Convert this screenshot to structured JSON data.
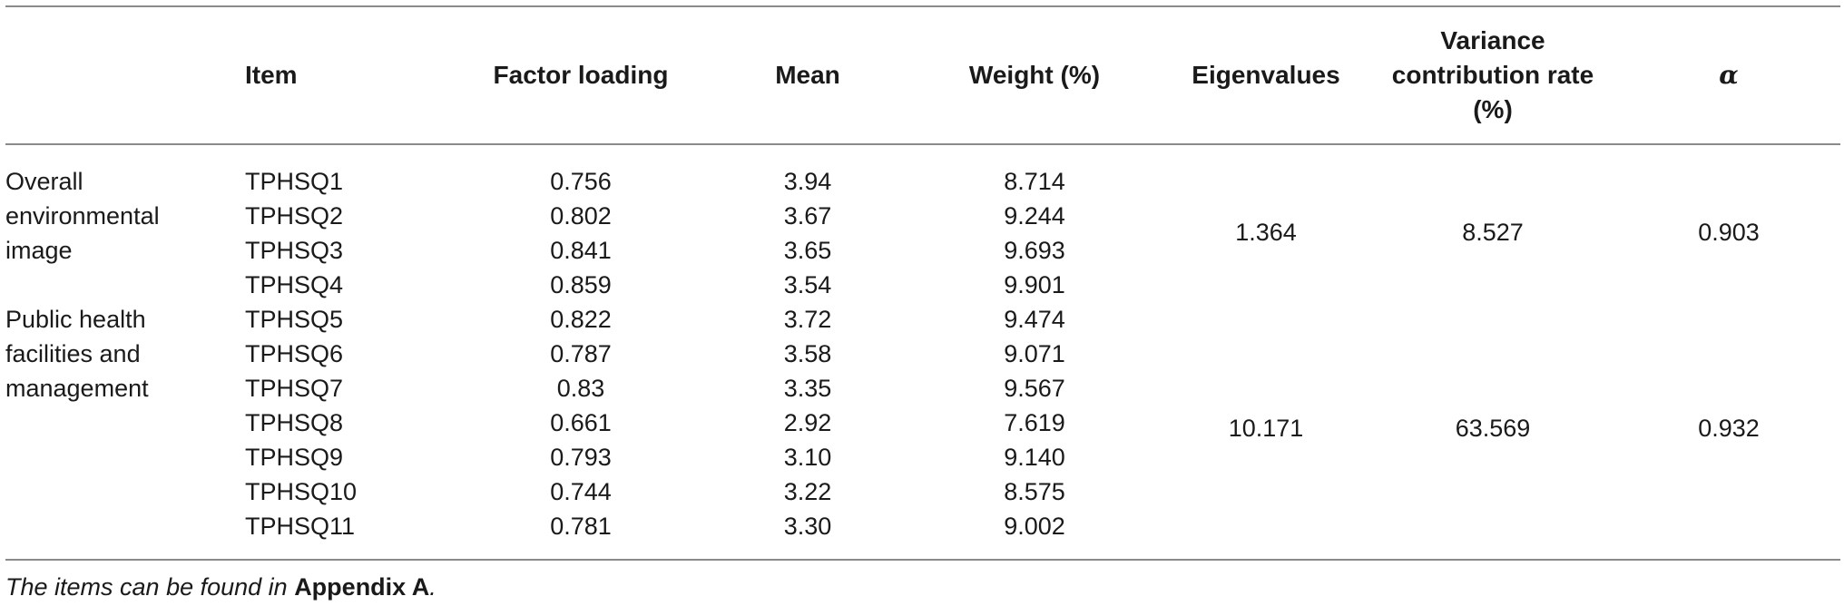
{
  "table": {
    "headers": {
      "item": "Item",
      "factor_loading": "Factor loading",
      "mean": "Mean",
      "weight": "Weight (%)",
      "eigenvalues": "Eigenvalues",
      "variance": "Variance contribution rate (%)",
      "alpha": "α"
    },
    "groups": [
      {
        "name": "Overall environmental image",
        "eigenvalues": "1.364",
        "variance": "8.527",
        "alpha": "0.903"
      },
      {
        "name": "Public health facilities and management",
        "eigenvalues": "10.171",
        "variance": "63.569",
        "alpha": "0.932"
      }
    ],
    "rows": [
      {
        "item": "TPHSQ1",
        "factor_loading": "0.756",
        "mean": "3.94",
        "weight": "8.714"
      },
      {
        "item": "TPHSQ2",
        "factor_loading": "0.802",
        "mean": "3.67",
        "weight": "9.244"
      },
      {
        "item": "TPHSQ3",
        "factor_loading": "0.841",
        "mean": "3.65",
        "weight": "9.693"
      },
      {
        "item": "TPHSQ4",
        "factor_loading": "0.859",
        "mean": "3.54",
        "weight": "9.901"
      },
      {
        "item": "TPHSQ5",
        "factor_loading": "0.822",
        "mean": "3.72",
        "weight": "9.474"
      },
      {
        "item": "TPHSQ6",
        "factor_loading": "0.787",
        "mean": "3.58",
        "weight": "9.071"
      },
      {
        "item": "TPHSQ7",
        "factor_loading": "0.83",
        "mean": "3.35",
        "weight": "9.567"
      },
      {
        "item": "TPHSQ8",
        "factor_loading": "0.661",
        "mean": "2.92",
        "weight": "7.619"
      },
      {
        "item": "TPHSQ9",
        "factor_loading": "0.793",
        "mean": "3.10",
        "weight": "9.140"
      },
      {
        "item": "TPHSQ10",
        "factor_loading": "0.744",
        "mean": "3.22",
        "weight": "8.575"
      },
      {
        "item": "TPHSQ11",
        "factor_loading": "0.781",
        "mean": "3.30",
        "weight": "9.002"
      }
    ],
    "footnote": {
      "text": "The items can be found in ",
      "ref": "Appendix A",
      "end": "."
    }
  }
}
